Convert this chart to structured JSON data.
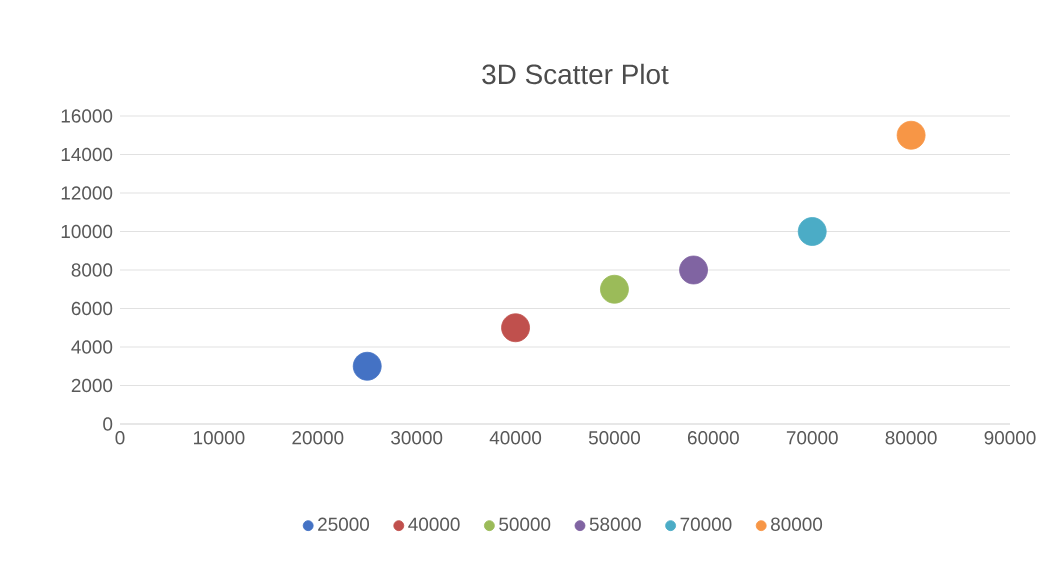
{
  "chart_data": {
    "type": "scatter",
    "title": "3D Scatter Plot",
    "marker": "circle",
    "grid": "y",
    "legend": "bottom",
    "xlim": [
      0,
      90000
    ],
    "xticks": [
      0,
      10000,
      20000,
      30000,
      40000,
      50000,
      60000,
      70000,
      80000,
      90000
    ],
    "ylim": [
      0,
      16000
    ],
    "yticks": [
      0,
      2000,
      4000,
      6000,
      8000,
      10000,
      12000,
      14000,
      16000
    ],
    "series": [
      {
        "name": "25000",
        "color": "#4472c4",
        "x": [
          25000
        ],
        "values": [
          3000
        ]
      },
      {
        "name": "40000",
        "color": "#c0504d",
        "x": [
          40000
        ],
        "values": [
          5000
        ]
      },
      {
        "name": "50000",
        "color": "#9bbb59",
        "x": [
          50000
        ],
        "values": [
          7000
        ]
      },
      {
        "name": "58000",
        "color": "#8064a2",
        "x": [
          58000
        ],
        "values": [
          8000
        ]
      },
      {
        "name": "70000",
        "color": "#4bacc6",
        "x": [
          70000
        ],
        "values": [
          10000
        ]
      },
      {
        "name": "80000",
        "color": "#f79646",
        "x": [
          80000
        ],
        "values": [
          15000
        ]
      }
    ]
  }
}
